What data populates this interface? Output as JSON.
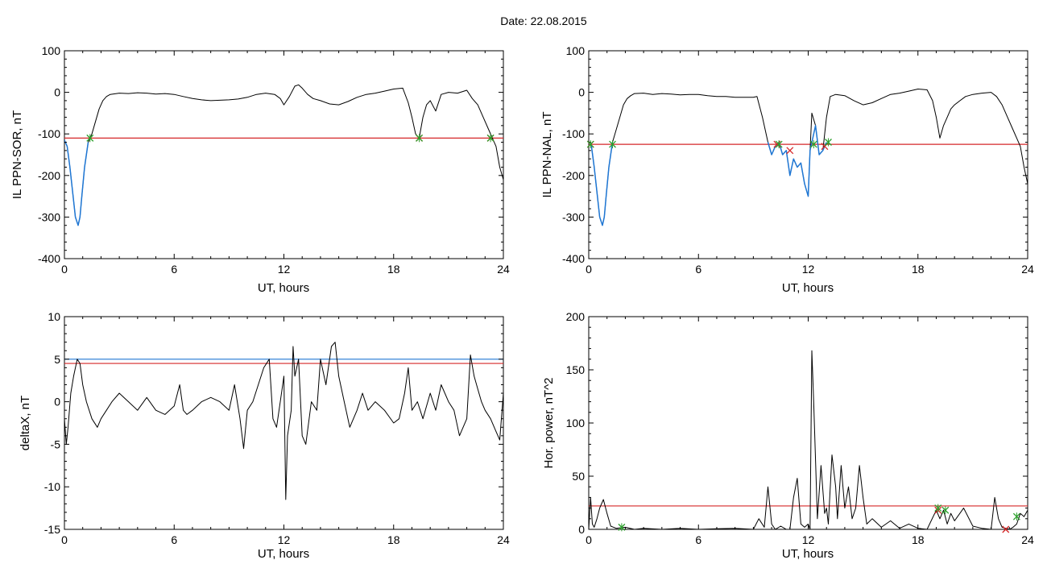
{
  "figure": {
    "title": "Date:  22.08.2015"
  },
  "chart_data": [
    {
      "type": "line",
      "xlabel": "UT, hours",
      "ylabel": "IL PPN-SOR, nT",
      "xlim": [
        0,
        24
      ],
      "ylim": [
        -400,
        100
      ],
      "xticks": [
        0,
        6,
        12,
        18,
        24
      ],
      "yticks": [
        -400,
        -300,
        -200,
        -100,
        0,
        100
      ],
      "threshold": -110,
      "series": [
        {
          "color": "#000000",
          "x": [
            0,
            0.15,
            0.3,
            0.45,
            0.6,
            0.75,
            0.85,
            0.95,
            1.1,
            1.3,
            1.5,
            1.7,
            1.9,
            2.1,
            2.3,
            2.5,
            3,
            3.5,
            4,
            4.5,
            5,
            5.5,
            6,
            6.5,
            7,
            7.5,
            8,
            8.5,
            9,
            9.5,
            10,
            10.5,
            11,
            11.5,
            11.8,
            12,
            12.3,
            12.6,
            12.8,
            13,
            13.3,
            13.6,
            14,
            14.5,
            15,
            15.5,
            16,
            16.5,
            17,
            17.5,
            18,
            18.5,
            18.8,
            19.0,
            19.2,
            19.4,
            19.6,
            19.8,
            20,
            20.3,
            20.6,
            21,
            21.5,
            22,
            22.3,
            22.6,
            22.9,
            23.2,
            23.4,
            23.6,
            23.8,
            24
          ],
          "y": [
            -115,
            -130,
            -180,
            -240,
            -300,
            -320,
            -300,
            -250,
            -180,
            -120,
            -100,
            -70,
            -40,
            -20,
            -10,
            -5,
            -2,
            -3,
            -1,
            -2,
            -4,
            -3,
            -5,
            -10,
            -15,
            -18,
            -20,
            -19,
            -18,
            -16,
            -12,
            -5,
            -2,
            -5,
            -15,
            -30,
            -10,
            15,
            18,
            10,
            -5,
            -15,
            -20,
            -28,
            -30,
            -22,
            -12,
            -5,
            -2,
            3,
            8,
            10,
            -25,
            -60,
            -100,
            -110,
            -60,
            -30,
            -20,
            -45,
            -5,
            0,
            -2,
            5,
            -15,
            -30,
            -60,
            -90,
            -110,
            -130,
            -180,
            -210
          ]
        },
        {
          "color": "#1f77d4",
          "x": [
            0,
            0.15,
            0.3,
            0.45,
            0.6,
            0.75,
            0.85,
            0.95,
            1.1,
            1.3
          ],
          "y": [
            -115,
            -130,
            -180,
            -240,
            -300,
            -320,
            -300,
            -250,
            -180,
            -120
          ]
        }
      ],
      "threshold_crossings": [
        {
          "x": 1.4,
          "y": -110,
          "color": "#2ca02c"
        },
        {
          "x": 19.4,
          "y": -110,
          "color": "#d62728"
        },
        {
          "x": 19.4,
          "y": -110,
          "color": "#2ca02c"
        },
        {
          "x": 23.3,
          "y": -110,
          "color": "#d62728"
        },
        {
          "x": 23.3,
          "y": -110,
          "color": "#2ca02c"
        }
      ]
    },
    {
      "type": "line",
      "xlabel": "UT, hours",
      "ylabel": "IL PPN-NAL, nT",
      "xlim": [
        0,
        24
      ],
      "ylim": [
        -400,
        100
      ],
      "xticks": [
        0,
        6,
        12,
        18,
        24
      ],
      "yticks": [
        -400,
        -300,
        -200,
        -100,
        0,
        100
      ],
      "threshold": -125,
      "series": [
        {
          "color": "#000000",
          "x": [
            0,
            0.15,
            0.3,
            0.45,
            0.6,
            0.75,
            0.85,
            0.95,
            1.1,
            1.3,
            1.5,
            1.7,
            1.9,
            2.1,
            2.3,
            2.5,
            3,
            3.5,
            4,
            4.5,
            5,
            5.5,
            6,
            6.5,
            7,
            7.5,
            8,
            8.5,
            9,
            9.2,
            9.5,
            9.8,
            10,
            10.2,
            10.4,
            10.6,
            10.8,
            11,
            11.2,
            11.4,
            11.6,
            11.8,
            12,
            12.1,
            12.2,
            12.4,
            12.6,
            12.8,
            13,
            13.2,
            13.5,
            14,
            14.5,
            15,
            15.5,
            16,
            16.5,
            17,
            17.5,
            18,
            18.5,
            18.8,
            19,
            19.2,
            19.4,
            19.6,
            19.8,
            20,
            20.3,
            20.6,
            21,
            21.5,
            22,
            22.3,
            22.6,
            22.9,
            23.2,
            23.4,
            23.6,
            23.8,
            24
          ],
          "y": [
            -120,
            -130,
            -180,
            -240,
            -300,
            -320,
            -300,
            -250,
            -180,
            -120,
            -90,
            -60,
            -30,
            -15,
            -8,
            -3,
            -2,
            -5,
            -3,
            -4,
            -6,
            -5,
            -5,
            -8,
            -10,
            -10,
            -12,
            -12,
            -12,
            -10,
            -60,
            -120,
            -150,
            -130,
            -120,
            -150,
            -140,
            -200,
            -160,
            -180,
            -170,
            -220,
            -250,
            -140,
            -50,
            -80,
            -150,
            -140,
            -60,
            -10,
            -5,
            -8,
            -20,
            -30,
            -25,
            -15,
            -5,
            -2,
            3,
            8,
            6,
            -20,
            -60,
            -110,
            -80,
            -60,
            -40,
            -30,
            -20,
            -10,
            -5,
            -2,
            0,
            -10,
            -30,
            -60,
            -90,
            -110,
            -130,
            -180,
            -220
          ]
        },
        {
          "color": "#1f77d4",
          "x": [
            0,
            0.15,
            0.3,
            0.45,
            0.6,
            0.75,
            0.85,
            0.95,
            1.1,
            1.3
          ],
          "y": [
            -120,
            -130,
            -180,
            -240,
            -300,
            -320,
            -300,
            -250,
            -180,
            -120
          ]
        },
        {
          "color": "#1f77d4",
          "x": [
            9.8,
            10,
            10.2,
            10.4,
            10.6,
            10.8,
            11,
            11.2,
            11.4,
            11.6,
            11.8,
            12,
            12.1,
            12.4,
            12.6,
            12.8,
            13
          ],
          "y": [
            -120,
            -150,
            -130,
            -120,
            -150,
            -140,
            -200,
            -160,
            -180,
            -170,
            -220,
            -250,
            -140,
            -80,
            -150,
            -140,
            -120
          ]
        }
      ],
      "threshold_crossings": [
        {
          "x": 0.1,
          "y": -125,
          "color": "#d62728"
        },
        {
          "x": 0.1,
          "y": -125,
          "color": "#2ca02c"
        },
        {
          "x": 1.3,
          "y": -125,
          "color": "#2ca02c"
        },
        {
          "x": 10.3,
          "y": -125,
          "color": "#d62728"
        },
        {
          "x": 10.4,
          "y": -125,
          "color": "#2ca02c"
        },
        {
          "x": 11.0,
          "y": -140,
          "color": "#d62728"
        },
        {
          "x": 12.3,
          "y": -125,
          "color": "#2ca02c"
        },
        {
          "x": 12.9,
          "y": -130,
          "color": "#d62728"
        },
        {
          "x": 13.1,
          "y": -120,
          "color": "#2ca02c"
        }
      ]
    },
    {
      "type": "line",
      "xlabel": "UT, hours",
      "ylabel": "deltaX, nT",
      "xlim": [
        0,
        24
      ],
      "ylim": [
        -15,
        10
      ],
      "xticks": [
        0,
        6,
        12,
        18,
        24
      ],
      "yticks": [
        -15,
        -10,
        -5,
        0,
        5,
        10
      ],
      "thresholds": [
        {
          "y": 5.0,
          "color": "#1f77d4"
        },
        {
          "y": 4.5,
          "color": "#d62728"
        }
      ],
      "series": [
        {
          "color": "#000000",
          "x": [
            0,
            0.1,
            0.2,
            0.35,
            0.5,
            0.7,
            0.85,
            1.0,
            1.2,
            1.5,
            1.8,
            2.0,
            2.3,
            2.6,
            3,
            3.5,
            4,
            4.5,
            5,
            5.5,
            6,
            6.3,
            6.5,
            6.7,
            7,
            7.5,
            8,
            8.5,
            9,
            9.3,
            9.6,
            9.8,
            10,
            10.3,
            10.6,
            10.9,
            11.2,
            11.4,
            11.6,
            11.8,
            12,
            12.1,
            12.2,
            12.4,
            12.5,
            12.6,
            12.8,
            13,
            13.2,
            13.5,
            13.8,
            14,
            14.3,
            14.6,
            14.8,
            15.0,
            15.3,
            15.6,
            16,
            16.3,
            16.6,
            17,
            17.5,
            18,
            18.3,
            18.6,
            18.8,
            19,
            19.3,
            19.6,
            20,
            20.3,
            20.6,
            21,
            21.3,
            21.6,
            22,
            22.2,
            22.4,
            22.6,
            22.8,
            23,
            23.3,
            23.6,
            23.8,
            24
          ],
          "y": [
            -2,
            -5,
            -3,
            1,
            3,
            5,
            4.5,
            2,
            0,
            -2,
            -3,
            -2,
            -1,
            0,
            1,
            0,
            -1,
            0.5,
            -1,
            -1.5,
            -0.5,
            2,
            -1,
            -1.5,
            -1,
            0,
            0.5,
            0,
            -1,
            2,
            -2,
            -5.5,
            -1,
            0,
            2,
            4,
            5,
            -2,
            -3,
            0,
            3,
            -11.5,
            -4,
            -1,
            6.5,
            3,
            5,
            -4,
            -5,
            0,
            -1,
            5,
            2,
            6.5,
            7,
            3,
            0,
            -3,
            -1,
            1,
            -1,
            0,
            -1,
            -2.5,
            -2,
            1,
            4,
            -1,
            0,
            -2,
            1,
            -1,
            2,
            0,
            -1,
            -4,
            -2,
            5.5,
            3,
            1.5,
            0,
            -1,
            -2,
            -3.5,
            -4.5,
            1
          ]
        }
      ]
    },
    {
      "type": "line",
      "xlabel": "UT, hours",
      "ylabel": "Hor. power, nT^2",
      "xlim": [
        0,
        24
      ],
      "ylim": [
        0,
        200
      ],
      "xticks": [
        0,
        6,
        12,
        18,
        24
      ],
      "yticks": [
        0,
        50,
        100,
        150,
        200
      ],
      "threshold": 22,
      "series": [
        {
          "color": "#000000",
          "x": [
            0,
            0.1,
            0.2,
            0.3,
            0.45,
            0.6,
            0.8,
            1.0,
            1.2,
            1.5,
            2,
            2.5,
            3,
            4,
            5,
            6,
            7,
            8,
            9,
            9.3,
            9.6,
            9.8,
            10,
            10.2,
            10.5,
            10.8,
            11,
            11.2,
            11.4,
            11.6,
            11.8,
            12,
            12.1,
            12.2,
            12.3,
            12.5,
            12.7,
            12.9,
            13.0,
            13.1,
            13.3,
            13.5,
            13.6,
            13.8,
            14,
            14.2,
            14.4,
            14.6,
            14.8,
            15,
            15.2,
            15.5,
            16,
            16.5,
            17,
            17.5,
            18,
            18.5,
            19,
            19.2,
            19.4,
            19.6,
            19.8,
            20,
            20.5,
            21,
            21.5,
            22,
            22.2,
            22.4,
            22.6,
            22.8,
            23,
            23.2,
            23.4,
            23.6,
            23.8,
            24
          ],
          "y": [
            0,
            30,
            5,
            2,
            10,
            20,
            28,
            15,
            3,
            1,
            2,
            0,
            1,
            0,
            1,
            0,
            0.5,
            1,
            0,
            10,
            2,
            40,
            5,
            0,
            3,
            0,
            0,
            30,
            48,
            5,
            2,
            5,
            0,
            168,
            120,
            10,
            60,
            15,
            20,
            5,
            70,
            40,
            10,
            60,
            20,
            40,
            10,
            20,
            60,
            30,
            5,
            10,
            2,
            8,
            1,
            5,
            1,
            0,
            18,
            10,
            18,
            5,
            15,
            8,
            20,
            3,
            1,
            0,
            30,
            10,
            2,
            1,
            0,
            2,
            5,
            15,
            12,
            18
          ]
        }
      ],
      "threshold_crossings": [
        {
          "x": 1.8,
          "y": 2,
          "color": "#2ca02c"
        },
        {
          "x": 19.1,
          "y": 18,
          "color": "#d62728"
        },
        {
          "x": 19.1,
          "y": 20,
          "color": "#2ca02c"
        },
        {
          "x": 19.5,
          "y": 18,
          "color": "#2ca02c"
        },
        {
          "x": 22.8,
          "y": 0,
          "color": "#d62728"
        },
        {
          "x": 23.4,
          "y": 12,
          "color": "#2ca02c"
        }
      ]
    }
  ]
}
